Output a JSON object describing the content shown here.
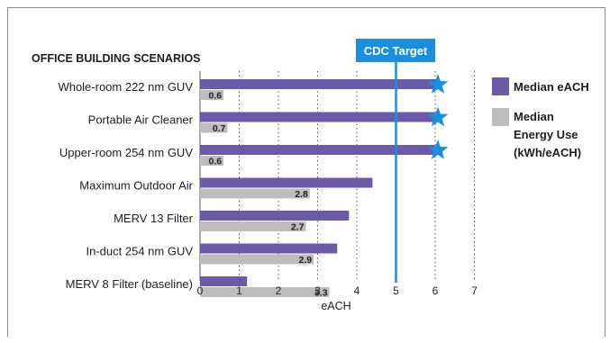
{
  "chart_data": {
    "type": "bar",
    "title": "OFFICE BUILDING SCENARIOS",
    "xlabel": "eACH",
    "ylabel": "",
    "xlim": [
      0,
      7
    ],
    "ticks": [
      "0",
      "1",
      "2",
      "3",
      "4",
      "5",
      "6",
      "7"
    ],
    "grid": "vertical dotted",
    "legend_position": "right",
    "categories": [
      "Whole-room 222 nm GUV",
      "Portable Air Cleaner",
      "Upper-room 254 nm GUV",
      "Maximum Outdoor Air",
      "MERV 13 Filter",
      "In-duct 254 nm GUV",
      "MERV 8 Filter (baseline)"
    ],
    "series": [
      {
        "name": "Median eACH",
        "color": "#6a5aa8",
        "values": [
          6,
          6,
          6,
          4.4,
          3.8,
          3.5,
          1.2
        ],
        "markers": [
          "star-icon",
          "star-icon",
          "star-icon",
          null,
          null,
          null,
          null
        ]
      },
      {
        "name": "Median Energy Use (kWh/eACH)",
        "color": "#bdbdbd",
        "values": [
          0.6,
          0.7,
          0.6,
          2.8,
          2.7,
          2.9,
          3.3
        ],
        "labels": [
          "0.6",
          "0.7",
          "0.6",
          "2.8",
          "2.7",
          "2.9",
          "3.3"
        ]
      }
    ],
    "target": {
      "label": "CDC Target",
      "value": 5,
      "color": "#1a8fe0"
    },
    "legend": [
      {
        "lines": [
          "Median eACH"
        ],
        "color": "#6a5aa8"
      },
      {
        "lines": [
          "Median",
          "Energy Use",
          "(kWh/eACH)"
        ],
        "color": "#bdbdbd"
      }
    ]
  }
}
